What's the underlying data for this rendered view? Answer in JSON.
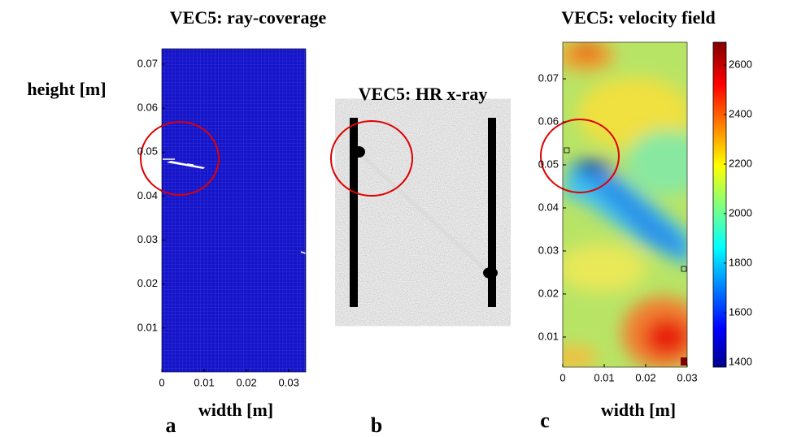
{
  "chart_data": [
    {
      "type": "heatmap",
      "title": "VEC5: ray-coverage",
      "ylabel": "height [m]",
      "xlabel": "width [m]",
      "panel_label": "a",
      "xlim": [
        0,
        0.034
      ],
      "xticks": [
        0,
        0.01,
        0.02,
        0.03
      ],
      "ylim": [
        0,
        0.0735
      ],
      "yticks": [
        0.01,
        0.02,
        0.03,
        0.04,
        0.05,
        0.06,
        0.07
      ]
    },
    {
      "type": "image",
      "title": "VEC5: HR x-ray",
      "panel_label": "b"
    },
    {
      "type": "heatmap",
      "title": "VEC5: velocity field",
      "xlabel": "width [m]",
      "panel_label": "c",
      "xlim": [
        0,
        0.03
      ],
      "xticks": [
        0,
        0.01,
        0.02,
        0.03
      ],
      "ylim": [
        0.003,
        0.0785
      ],
      "yticks": [
        0.01,
        0.02,
        0.03,
        0.04,
        0.05,
        0.06,
        0.07
      ],
      "clim": [
        1380,
        2692
      ],
      "cticks": [
        1400,
        1600,
        1800,
        2000,
        2200,
        2400,
        2600
      ]
    }
  ]
}
